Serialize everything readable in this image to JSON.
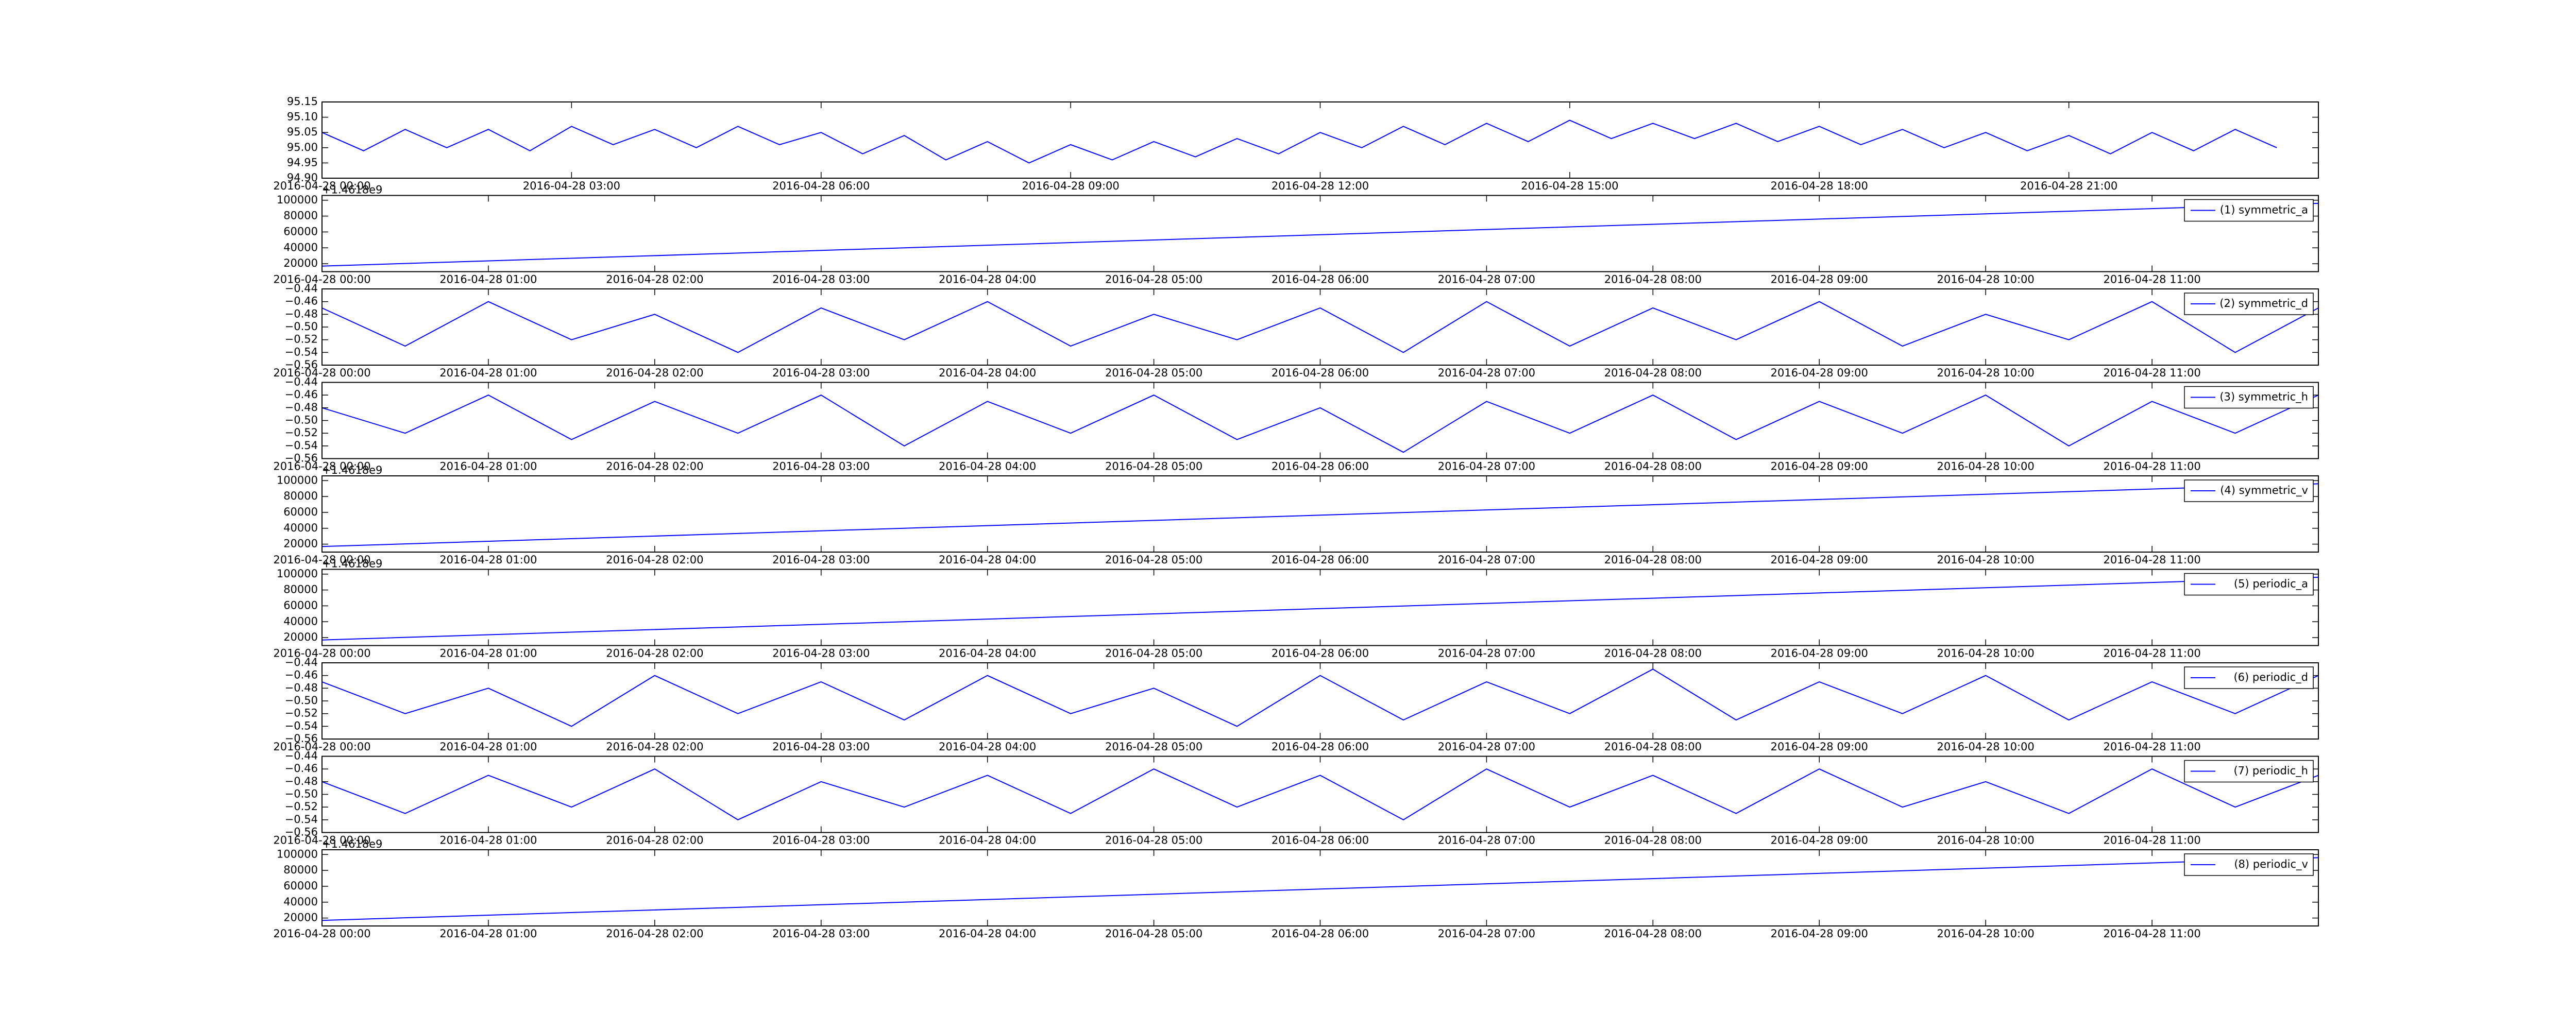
{
  "chart_data": [
    {
      "type": "line",
      "series": [
        {
          "color": "#0000ff",
          "values": [
            95.05,
            94.99,
            95.06,
            95.0,
            95.06,
            94.99,
            95.07,
            95.01,
            95.06,
            95.0,
            95.07,
            95.01,
            95.05,
            94.98,
            95.04,
            94.96,
            95.02,
            94.95,
            95.01,
            94.96,
            95.02,
            94.97,
            95.03,
            94.98,
            95.05,
            95.0,
            95.07,
            95.01,
            95.08,
            95.02,
            95.09,
            95.03,
            95.08,
            95.03,
            95.08,
            95.02,
            95.07,
            95.01,
            95.06,
            95.0,
            95.05,
            94.99,
            95.04,
            94.98,
            95.05,
            94.99,
            95.06,
            95.0
          ]
        }
      ],
      "x": [
        "2016-04-28 00:00",
        "2016-04-28 00:30",
        "2016-04-28 01:00",
        "2016-04-28 01:30",
        "2016-04-28 02:00",
        "2016-04-28 02:30",
        "2016-04-28 03:00",
        "2016-04-28 03:30",
        "2016-04-28 04:00",
        "2016-04-28 04:30",
        "2016-04-28 05:00",
        "2016-04-28 05:30",
        "2016-04-28 06:00",
        "2016-04-28 06:30",
        "2016-04-28 07:00",
        "2016-04-28 07:30",
        "2016-04-28 08:00",
        "2016-04-28 08:30",
        "2016-04-28 09:00",
        "2016-04-28 09:30",
        "2016-04-28 10:00",
        "2016-04-28 10:30",
        "2016-04-28 11:00",
        "2016-04-28 11:30",
        "2016-04-28 12:00",
        "2016-04-28 12:30",
        "2016-04-28 13:00",
        "2016-04-28 13:30",
        "2016-04-28 14:00",
        "2016-04-28 14:30",
        "2016-04-28 15:00",
        "2016-04-28 15:30",
        "2016-04-28 16:00",
        "2016-04-28 16:30",
        "2016-04-28 17:00",
        "2016-04-28 17:30",
        "2016-04-28 18:00",
        "2016-04-28 18:30",
        "2016-04-28 19:00",
        "2016-04-28 19:30",
        "2016-04-28 20:00",
        "2016-04-28 20:30",
        "2016-04-28 21:00",
        "2016-04-28 21:30",
        "2016-04-28 22:00",
        "2016-04-28 22:30",
        "2016-04-28 23:00",
        "2016-04-28 23:30"
      ],
      "xlim": [
        "2016-04-28 00:00",
        "2016-04-29 00:00"
      ],
      "xticks": [
        "2016-04-28 00:00",
        "2016-04-28 03:00",
        "2016-04-28 06:00",
        "2016-04-28 09:00",
        "2016-04-28 12:00",
        "2016-04-28 15:00",
        "2016-04-28 18:00",
        "2016-04-28 21:00"
      ],
      "ylim": [
        94.9,
        95.15
      ],
      "yticks": [
        {
          "value": 94.9,
          "label": "94.90"
        },
        {
          "value": 94.95,
          "label": "94.95"
        },
        {
          "value": 95.0,
          "label": "95.00"
        },
        {
          "value": 95.05,
          "label": "95.05"
        },
        {
          "value": 95.1,
          "label": "95.10"
        },
        {
          "value": 95.15,
          "label": "95.15"
        }
      ]
    },
    {
      "type": "line",
      "offset_text": "+1.4618e9",
      "legend": "upper right",
      "series": [
        {
          "name": "(1) symmetric_a",
          "color": "#0000ff",
          "values": [
            17000,
            96000
          ]
        }
      ],
      "x": [
        "2016-04-28 00:00",
        "2016-04-28 12:00"
      ],
      "xlim": [
        "2016-04-28 00:00",
        "2016-04-28 12:00"
      ],
      "xticks": [
        "2016-04-28 00:00",
        "2016-04-28 01:00",
        "2016-04-28 02:00",
        "2016-04-28 03:00",
        "2016-04-28 04:00",
        "2016-04-28 05:00",
        "2016-04-28 06:00",
        "2016-04-28 07:00",
        "2016-04-28 08:00",
        "2016-04-28 09:00",
        "2016-04-28 10:00",
        "2016-04-28 11:00"
      ],
      "ylim": [
        10000,
        106000
      ],
      "yticks": [
        20000,
        40000,
        60000,
        80000,
        100000
      ]
    },
    {
      "type": "line",
      "legend": "upper right",
      "series": [
        {
          "name": "(2) symmetric_d",
          "color": "#0000ff",
          "values": [
            -0.47,
            -0.53,
            -0.46,
            -0.52,
            -0.48,
            -0.54,
            -0.47,
            -0.52,
            -0.46,
            -0.53,
            -0.48,
            -0.52,
            -0.47,
            -0.54,
            -0.46,
            -0.53,
            -0.47,
            -0.52,
            -0.46,
            -0.53,
            -0.48,
            -0.52,
            -0.46,
            -0.54,
            -0.47
          ]
        }
      ],
      "x": [
        "2016-04-28 00:00",
        "2016-04-28 00:30",
        "2016-04-28 01:00",
        "2016-04-28 01:30",
        "2016-04-28 02:00",
        "2016-04-28 02:30",
        "2016-04-28 03:00",
        "2016-04-28 03:30",
        "2016-04-28 04:00",
        "2016-04-28 04:30",
        "2016-04-28 05:00",
        "2016-04-28 05:30",
        "2016-04-28 06:00",
        "2016-04-28 06:30",
        "2016-04-28 07:00",
        "2016-04-28 07:30",
        "2016-04-28 08:00",
        "2016-04-28 08:30",
        "2016-04-28 09:00",
        "2016-04-28 09:30",
        "2016-04-28 10:00",
        "2016-04-28 10:30",
        "2016-04-28 11:00",
        "2016-04-28 11:30",
        "2016-04-28 12:00"
      ],
      "xlim": [
        "2016-04-28 00:00",
        "2016-04-28 12:00"
      ],
      "xticks": [
        "2016-04-28 00:00",
        "2016-04-28 01:00",
        "2016-04-28 02:00",
        "2016-04-28 03:00",
        "2016-04-28 04:00",
        "2016-04-28 05:00",
        "2016-04-28 06:00",
        "2016-04-28 07:00",
        "2016-04-28 08:00",
        "2016-04-28 09:00",
        "2016-04-28 10:00",
        "2016-04-28 11:00"
      ],
      "ylim": [
        -0.56,
        -0.44
      ],
      "yticks": [
        {
          "value": -0.56,
          "label": "−0.56"
        },
        {
          "value": -0.54,
          "label": "−0.54"
        },
        {
          "value": -0.52,
          "label": "−0.52"
        },
        {
          "value": -0.5,
          "label": "−0.50"
        },
        {
          "value": -0.48,
          "label": "−0.48"
        },
        {
          "value": -0.46,
          "label": "−0.46"
        },
        {
          "value": -0.44,
          "label": "−0.44"
        }
      ]
    },
    {
      "type": "line",
      "legend": "upper right",
      "series": [
        {
          "name": "(3) symmetric_h",
          "color": "#0000ff",
          "values": [
            -0.48,
            -0.52,
            -0.46,
            -0.53,
            -0.47,
            -0.52,
            -0.46,
            -0.54,
            -0.47,
            -0.52,
            -0.46,
            -0.53,
            -0.48,
            -0.55,
            -0.47,
            -0.52,
            -0.46,
            -0.53,
            -0.47,
            -0.52,
            -0.46,
            -0.54,
            -0.47,
            -0.52,
            -0.46
          ]
        }
      ],
      "x": [
        "2016-04-28 00:00",
        "2016-04-28 00:30",
        "2016-04-28 01:00",
        "2016-04-28 01:30",
        "2016-04-28 02:00",
        "2016-04-28 02:30",
        "2016-04-28 03:00",
        "2016-04-28 03:30",
        "2016-04-28 04:00",
        "2016-04-28 04:30",
        "2016-04-28 05:00",
        "2016-04-28 05:30",
        "2016-04-28 06:00",
        "2016-04-28 06:30",
        "2016-04-28 07:00",
        "2016-04-28 07:30",
        "2016-04-28 08:00",
        "2016-04-28 08:30",
        "2016-04-28 09:00",
        "2016-04-28 09:30",
        "2016-04-28 10:00",
        "2016-04-28 10:30",
        "2016-04-28 11:00",
        "2016-04-28 11:30",
        "2016-04-28 12:00"
      ],
      "xlim": [
        "2016-04-28 00:00",
        "2016-04-28 12:00"
      ],
      "xticks": [
        "2016-04-28 00:00",
        "2016-04-28 01:00",
        "2016-04-28 02:00",
        "2016-04-28 03:00",
        "2016-04-28 04:00",
        "2016-04-28 05:00",
        "2016-04-28 06:00",
        "2016-04-28 07:00",
        "2016-04-28 08:00",
        "2016-04-28 09:00",
        "2016-04-28 10:00",
        "2016-04-28 11:00"
      ],
      "ylim": [
        -0.56,
        -0.44
      ],
      "yticks": [
        {
          "value": -0.56,
          "label": "−0.56"
        },
        {
          "value": -0.54,
          "label": "−0.54"
        },
        {
          "value": -0.52,
          "label": "−0.52"
        },
        {
          "value": -0.5,
          "label": "−0.50"
        },
        {
          "value": -0.48,
          "label": "−0.48"
        },
        {
          "value": -0.46,
          "label": "−0.46"
        },
        {
          "value": -0.44,
          "label": "−0.44"
        }
      ]
    },
    {
      "type": "line",
      "offset_text": "+1.4618e9",
      "legend": "upper right",
      "series": [
        {
          "name": "(4) symmetric_v",
          "color": "#0000ff",
          "values": [
            17000,
            96000
          ]
        }
      ],
      "x": [
        "2016-04-28 00:00",
        "2016-04-28 12:00"
      ],
      "xlim": [
        "2016-04-28 00:00",
        "2016-04-28 12:00"
      ],
      "xticks": [
        "2016-04-28 00:00",
        "2016-04-28 01:00",
        "2016-04-28 02:00",
        "2016-04-28 03:00",
        "2016-04-28 04:00",
        "2016-04-28 05:00",
        "2016-04-28 06:00",
        "2016-04-28 07:00",
        "2016-04-28 08:00",
        "2016-04-28 09:00",
        "2016-04-28 10:00",
        "2016-04-28 11:00"
      ],
      "ylim": [
        10000,
        106000
      ],
      "yticks": [
        20000,
        40000,
        60000,
        80000,
        100000
      ]
    },
    {
      "type": "line",
      "offset_text": "+1.4618e9",
      "legend": "upper right",
      "series": [
        {
          "name": "(5) periodic_a",
          "color": "#0000ff",
          "values": [
            17000,
            96000
          ]
        }
      ],
      "x": [
        "2016-04-28 00:00",
        "2016-04-28 12:00"
      ],
      "xlim": [
        "2016-04-28 00:00",
        "2016-04-28 12:00"
      ],
      "xticks": [
        "2016-04-28 00:00",
        "2016-04-28 01:00",
        "2016-04-28 02:00",
        "2016-04-28 03:00",
        "2016-04-28 04:00",
        "2016-04-28 05:00",
        "2016-04-28 06:00",
        "2016-04-28 07:00",
        "2016-04-28 08:00",
        "2016-04-28 09:00",
        "2016-04-28 10:00",
        "2016-04-28 11:00"
      ],
      "ylim": [
        10000,
        106000
      ],
      "yticks": [
        20000,
        40000,
        60000,
        80000,
        100000
      ]
    },
    {
      "type": "line",
      "legend": "upper right",
      "series": [
        {
          "name": "(6) periodic_d",
          "color": "#0000ff",
          "values": [
            -0.47,
            -0.52,
            -0.48,
            -0.54,
            -0.46,
            -0.52,
            -0.47,
            -0.53,
            -0.46,
            -0.52,
            -0.48,
            -0.54,
            -0.46,
            -0.53,
            -0.47,
            -0.52,
            -0.45,
            -0.53,
            -0.47,
            -0.52,
            -0.46,
            -0.53,
            -0.47,
            -0.52,
            -0.46
          ]
        }
      ],
      "x": [
        "2016-04-28 00:00",
        "2016-04-28 00:30",
        "2016-04-28 01:00",
        "2016-04-28 01:30",
        "2016-04-28 02:00",
        "2016-04-28 02:30",
        "2016-04-28 03:00",
        "2016-04-28 03:30",
        "2016-04-28 04:00",
        "2016-04-28 04:30",
        "2016-04-28 05:00",
        "2016-04-28 05:30",
        "2016-04-28 06:00",
        "2016-04-28 06:30",
        "2016-04-28 07:00",
        "2016-04-28 07:30",
        "2016-04-28 08:00",
        "2016-04-28 08:30",
        "2016-04-28 09:00",
        "2016-04-28 09:30",
        "2016-04-28 10:00",
        "2016-04-28 10:30",
        "2016-04-28 11:00",
        "2016-04-28 11:30",
        "2016-04-28 12:00"
      ],
      "xlim": [
        "2016-04-28 00:00",
        "2016-04-28 12:00"
      ],
      "xticks": [
        "2016-04-28 00:00",
        "2016-04-28 01:00",
        "2016-04-28 02:00",
        "2016-04-28 03:00",
        "2016-04-28 04:00",
        "2016-04-28 05:00",
        "2016-04-28 06:00",
        "2016-04-28 07:00",
        "2016-04-28 08:00",
        "2016-04-28 09:00",
        "2016-04-28 10:00",
        "2016-04-28 11:00"
      ],
      "ylim": [
        -0.56,
        -0.44
      ],
      "yticks": [
        {
          "value": -0.56,
          "label": "−0.56"
        },
        {
          "value": -0.54,
          "label": "−0.54"
        },
        {
          "value": -0.52,
          "label": "−0.52"
        },
        {
          "value": -0.5,
          "label": "−0.50"
        },
        {
          "value": -0.48,
          "label": "−0.48"
        },
        {
          "value": -0.46,
          "label": "−0.46"
        },
        {
          "value": -0.44,
          "label": "−0.44"
        }
      ]
    },
    {
      "type": "line",
      "legend": "upper right",
      "series": [
        {
          "name": "(7) periodic_h",
          "color": "#0000ff",
          "values": [
            -0.48,
            -0.53,
            -0.47,
            -0.52,
            -0.46,
            -0.54,
            -0.48,
            -0.52,
            -0.47,
            -0.53,
            -0.46,
            -0.52,
            -0.47,
            -0.54,
            -0.46,
            -0.52,
            -0.47,
            -0.53,
            -0.46,
            -0.52,
            -0.48,
            -0.53,
            -0.46,
            -0.52,
            -0.47
          ]
        }
      ],
      "x": [
        "2016-04-28 00:00",
        "2016-04-28 00:30",
        "2016-04-28 01:00",
        "2016-04-28 01:30",
        "2016-04-28 02:00",
        "2016-04-28 02:30",
        "2016-04-28 03:00",
        "2016-04-28 03:30",
        "2016-04-28 04:00",
        "2016-04-28 04:30",
        "2016-04-28 05:00",
        "2016-04-28 05:30",
        "2016-04-28 06:00",
        "2016-04-28 06:30",
        "2016-04-28 07:00",
        "2016-04-28 07:30",
        "2016-04-28 08:00",
        "2016-04-28 08:30",
        "2016-04-28 09:00",
        "2016-04-28 09:30",
        "2016-04-28 10:00",
        "2016-04-28 10:30",
        "2016-04-28 11:00",
        "2016-04-28 11:30",
        "2016-04-28 12:00"
      ],
      "xlim": [
        "2016-04-28 00:00",
        "2016-04-28 12:00"
      ],
      "xticks": [
        "2016-04-28 00:00",
        "2016-04-28 01:00",
        "2016-04-28 02:00",
        "2016-04-28 03:00",
        "2016-04-28 04:00",
        "2016-04-28 05:00",
        "2016-04-28 06:00",
        "2016-04-28 07:00",
        "2016-04-28 08:00",
        "2016-04-28 09:00",
        "2016-04-28 10:00",
        "2016-04-28 11:00"
      ],
      "ylim": [
        -0.56,
        -0.44
      ],
      "yticks": [
        {
          "value": -0.56,
          "label": "−0.56"
        },
        {
          "value": -0.54,
          "label": "−0.54"
        },
        {
          "value": -0.52,
          "label": "−0.52"
        },
        {
          "value": -0.5,
          "label": "−0.50"
        },
        {
          "value": -0.48,
          "label": "−0.48"
        },
        {
          "value": -0.46,
          "label": "−0.46"
        },
        {
          "value": -0.44,
          "label": "−0.44"
        }
      ]
    },
    {
      "type": "line",
      "offset_text": "+1.4618e9",
      "legend": "upper right",
      "series": [
        {
          "name": "(8) periodic_v",
          "color": "#0000ff",
          "values": [
            17000,
            96000
          ]
        }
      ],
      "x": [
        "2016-04-28 00:00",
        "2016-04-28 12:00"
      ],
      "xlim": [
        "2016-04-28 00:00",
        "2016-04-28 12:00"
      ],
      "xticks": [
        "2016-04-28 00:00",
        "2016-04-28 01:00",
        "2016-04-28 02:00",
        "2016-04-28 03:00",
        "2016-04-28 04:00",
        "2016-04-28 05:00",
        "2016-04-28 06:00",
        "2016-04-28 07:00",
        "2016-04-28 08:00",
        "2016-04-28 09:00",
        "2016-04-28 10:00",
        "2016-04-28 11:00"
      ],
      "ylim": [
        10000,
        106000
      ],
      "yticks": [
        20000,
        40000,
        60000,
        80000,
        100000
      ]
    }
  ]
}
